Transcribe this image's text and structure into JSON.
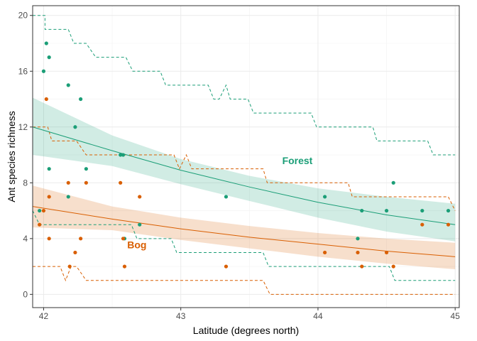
{
  "chart_data": {
    "type": "scatter",
    "xlabel": "Latitude (degrees north)",
    "ylabel": "Ant species richness",
    "xlim": [
      41.92,
      45.03
    ],
    "ylim": [
      -0.95,
      20.7
    ],
    "xticks": [
      42,
      43,
      44,
      45
    ],
    "yticks": [
      0,
      4,
      8,
      12,
      16,
      20
    ],
    "grid": true,
    "legend": "none",
    "series": [
      {
        "name": "Forest",
        "label_position": {
          "x": 43.85,
          "y": 9.35
        },
        "color": "#1B9E77",
        "points": [
          [
            41.97,
            6
          ],
          [
            42.0,
            16
          ],
          [
            42.02,
            18
          ],
          [
            42.04,
            17
          ],
          [
            42.04,
            9
          ],
          [
            42.18,
            15
          ],
          [
            42.18,
            7
          ],
          [
            42.23,
            12
          ],
          [
            42.27,
            14
          ],
          [
            42.31,
            9
          ],
          [
            42.56,
            10
          ],
          [
            42.58,
            10
          ],
          [
            42.59,
            4
          ],
          [
            42.7,
            5
          ],
          [
            43.33,
            7
          ],
          [
            44.05,
            7
          ],
          [
            44.29,
            4
          ],
          [
            44.32,
            6
          ],
          [
            44.5,
            6
          ],
          [
            44.55,
            8
          ],
          [
            44.76,
            6
          ],
          [
            44.95,
            6
          ]
        ],
        "fit": [
          [
            41.92,
            12.0
          ],
          [
            42.5,
            10.3
          ],
          [
            43.0,
            8.9
          ],
          [
            43.5,
            7.7
          ],
          [
            44.0,
            6.6
          ],
          [
            44.5,
            5.7
          ],
          [
            45.0,
            5.0
          ]
        ],
        "ci_lower": [
          [
            41.92,
            10.0
          ],
          [
            42.5,
            9.2
          ],
          [
            43.0,
            7.9
          ],
          [
            43.5,
            6.7
          ],
          [
            44.0,
            5.5
          ],
          [
            44.5,
            4.5
          ],
          [
            45.0,
            3.8
          ]
        ],
        "ci_upper": [
          [
            41.92,
            14.1
          ],
          [
            42.5,
            11.4
          ],
          [
            43.0,
            9.7
          ],
          [
            43.5,
            8.5
          ],
          [
            44.0,
            7.6
          ],
          [
            44.5,
            7.0
          ],
          [
            45.0,
            6.5
          ]
        ],
        "band_upper": [
          [
            41.92,
            20
          ],
          [
            42.01,
            20
          ],
          [
            42.01,
            19
          ],
          [
            42.18,
            19
          ],
          [
            42.22,
            18
          ],
          [
            42.31,
            18
          ],
          [
            42.38,
            17
          ],
          [
            42.6,
            17
          ],
          [
            42.65,
            16
          ],
          [
            42.85,
            16
          ],
          [
            42.89,
            15
          ],
          [
            43.2,
            15
          ],
          [
            43.24,
            14
          ],
          [
            43.28,
            14
          ],
          [
            43.33,
            15
          ],
          [
            43.36,
            14
          ],
          [
            43.49,
            14
          ],
          [
            43.53,
            13
          ],
          [
            43.95,
            13
          ],
          [
            43.99,
            12
          ],
          [
            44.4,
            12
          ],
          [
            44.43,
            11
          ],
          [
            44.8,
            11
          ],
          [
            44.84,
            10
          ],
          [
            45.0,
            10
          ]
        ],
        "band_lower": [
          [
            41.92,
            6
          ],
          [
            41.97,
            5
          ],
          [
            42.27,
            5
          ],
          [
            42.3,
            5
          ],
          [
            42.64,
            5
          ],
          [
            42.68,
            4
          ],
          [
            42.93,
            4
          ],
          [
            42.97,
            3
          ],
          [
            43.0,
            3
          ],
          [
            43.04,
            3
          ],
          [
            43.6,
            3
          ],
          [
            43.64,
            2
          ],
          [
            44.52,
            2
          ],
          [
            44.56,
            1
          ],
          [
            45.0,
            1
          ]
        ]
      },
      {
        "name": "Bog",
        "label_position": {
          "x": 42.68,
          "y": 3.3
        },
        "color": "#D95F02",
        "points": [
          [
            41.97,
            5
          ],
          [
            42.0,
            6
          ],
          [
            42.02,
            14
          ],
          [
            42.04,
            7
          ],
          [
            42.04,
            4
          ],
          [
            42.18,
            8
          ],
          [
            42.19,
            2
          ],
          [
            42.23,
            3
          ],
          [
            42.27,
            4
          ],
          [
            42.31,
            8
          ],
          [
            42.56,
            8
          ],
          [
            42.58,
            4
          ],
          [
            42.59,
            2
          ],
          [
            42.7,
            7
          ],
          [
            43.33,
            2
          ],
          [
            44.05,
            3
          ],
          [
            44.29,
            3
          ],
          [
            44.32,
            2
          ],
          [
            44.5,
            3
          ],
          [
            44.55,
            2
          ],
          [
            44.76,
            5
          ],
          [
            44.95,
            5
          ]
        ],
        "fit": [
          [
            41.92,
            6.3
          ],
          [
            42.5,
            5.4
          ],
          [
            43.0,
            4.7
          ],
          [
            43.5,
            4.1
          ],
          [
            44.0,
            3.6
          ],
          [
            44.5,
            3.1
          ],
          [
            45.0,
            2.7
          ]
        ],
        "ci_lower": [
          [
            41.92,
            4.8
          ],
          [
            42.5,
            4.6
          ],
          [
            43.0,
            3.9
          ],
          [
            43.5,
            3.3
          ],
          [
            44.0,
            2.7
          ],
          [
            44.5,
            2.2
          ],
          [
            45.0,
            1.8
          ]
        ],
        "ci_upper": [
          [
            41.92,
            7.8
          ],
          [
            42.5,
            6.3
          ],
          [
            43.0,
            5.5
          ],
          [
            43.5,
            4.9
          ],
          [
            44.0,
            4.4
          ],
          [
            44.5,
            4.0
          ],
          [
            45.0,
            3.7
          ]
        ],
        "band_upper": [
          [
            41.92,
            12
          ],
          [
            42.03,
            12
          ],
          [
            42.06,
            11
          ],
          [
            42.15,
            11
          ],
          [
            42.24,
            11
          ],
          [
            42.31,
            10
          ],
          [
            42.95,
            10
          ],
          [
            42.99,
            9
          ],
          [
            43.04,
            10
          ],
          [
            43.08,
            9
          ],
          [
            43.6,
            9
          ],
          [
            43.63,
            8
          ],
          [
            44.22,
            8
          ],
          [
            44.25,
            7
          ],
          [
            44.95,
            7
          ],
          [
            45.0,
            6
          ]
        ],
        "band_lower": [
          [
            41.92,
            2
          ],
          [
            42.12,
            2
          ],
          [
            42.16,
            1
          ],
          [
            42.2,
            2
          ],
          [
            42.24,
            2
          ],
          [
            42.31,
            1
          ],
          [
            43.6,
            1
          ],
          [
            43.65,
            0
          ],
          [
            45.0,
            0
          ]
        ]
      }
    ]
  }
}
